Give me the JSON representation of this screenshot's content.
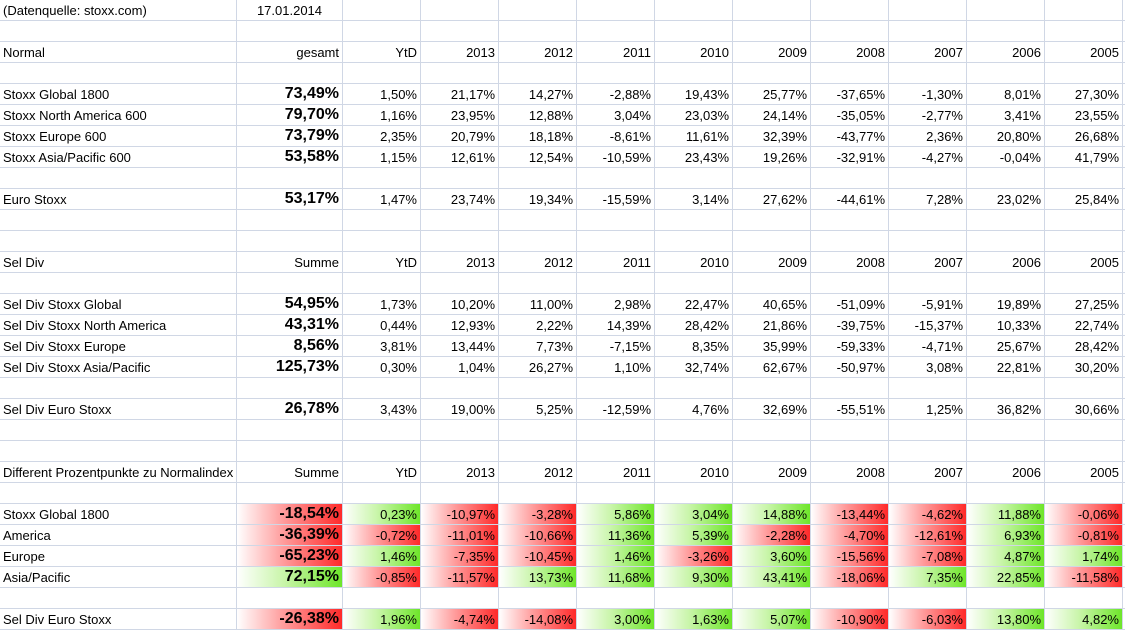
{
  "source_note": "(Datenquelle: stoxx.com)",
  "date": "17.01.2014",
  "years": [
    "2013",
    "2012",
    "2011",
    "2010",
    "2009",
    "2008",
    "2007",
    "2006",
    "2005"
  ],
  "sections": [
    {
      "header": {
        "label": "Normal",
        "total": "gesamt",
        "ytd": "YtD"
      },
      "groups": [
        [
          {
            "label": "Stoxx Global 1800",
            "total": "73,49%",
            "values": [
              "1,50%",
              "21,17%",
              "14,27%",
              "-2,88%",
              "19,43%",
              "25,77%",
              "-37,65%",
              "-1,30%",
              "8,01%",
              "27,30%"
            ]
          },
          {
            "label": "Stoxx North America 600",
            "total": "79,70%",
            "values": [
              "1,16%",
              "23,95%",
              "12,88%",
              "3,04%",
              "23,03%",
              "24,14%",
              "-35,05%",
              "-2,77%",
              "3,41%",
              "23,55%"
            ]
          },
          {
            "label": "Stoxx Europe 600",
            "total": "73,79%",
            "values": [
              "2,35%",
              "20,79%",
              "18,18%",
              "-8,61%",
              "11,61%",
              "32,39%",
              "-43,77%",
              "2,36%",
              "20,80%",
              "26,68%"
            ]
          },
          {
            "label": "Stoxx Asia/Pacific 600",
            "total": "53,58%",
            "values": [
              "1,15%",
              "12,61%",
              "12,54%",
              "-10,59%",
              "23,43%",
              "19,26%",
              "-32,91%",
              "-4,27%",
              "-0,04%",
              "41,79%"
            ]
          }
        ],
        [
          {
            "label": "Euro Stoxx",
            "total": "53,17%",
            "values": [
              "1,47%",
              "23,74%",
              "19,34%",
              "-15,59%",
              "3,14%",
              "27,62%",
              "-44,61%",
              "7,28%",
              "23,02%",
              "25,84%"
            ]
          }
        ]
      ]
    },
    {
      "header": {
        "label": "Sel Div",
        "total": "Summe",
        "ytd": "YtD"
      },
      "groups": [
        [
          {
            "label": "Sel Div Stoxx Global",
            "total": "54,95%",
            "values": [
              "1,73%",
              "10,20%",
              "11,00%",
              "2,98%",
              "22,47%",
              "40,65%",
              "-51,09%",
              "-5,91%",
              "19,89%",
              "27,25%"
            ]
          },
          {
            "label": "Sel Div Stoxx North America",
            "total": "43,31%",
            "values": [
              "0,44%",
              "12,93%",
              "2,22%",
              "14,39%",
              "28,42%",
              "21,86%",
              "-39,75%",
              "-15,37%",
              "10,33%",
              "22,74%"
            ]
          },
          {
            "label": "Sel Div Stoxx Europe",
            "total": "8,56%",
            "values": [
              "3,81%",
              "13,44%",
              "7,73%",
              "-7,15%",
              "8,35%",
              "35,99%",
              "-59,33%",
              "-4,71%",
              "25,67%",
              "28,42%"
            ]
          },
          {
            "label": "Sel Div Stoxx Asia/Pacific",
            "total": "125,73%",
            "values": [
              "0,30%",
              "1,04%",
              "26,27%",
              "1,10%",
              "32,74%",
              "62,67%",
              "-50,97%",
              "3,08%",
              "22,81%",
              "30,20%"
            ]
          }
        ],
        [
          {
            "label": "Sel Div Euro Stoxx",
            "total": "26,78%",
            "values": [
              "3,43%",
              "19,00%",
              "5,25%",
              "-12,59%",
              "4,76%",
              "32,69%",
              "-55,51%",
              "1,25%",
              "36,82%",
              "30,66%"
            ]
          }
        ]
      ]
    },
    {
      "header": {
        "label": "Different Prozentpunkte zu Normalindex",
        "total": "Summe",
        "ytd": "YtD"
      },
      "colored": true,
      "groups": [
        [
          {
            "label": "Stoxx Global 1800",
            "total": "-18,54%",
            "values": [
              "0,23%",
              "-10,97%",
              "-3,28%",
              "5,86%",
              "3,04%",
              "14,88%",
              "-13,44%",
              "-4,62%",
              "11,88%",
              "-0,06%"
            ]
          },
          {
            "label": "America",
            "total": "-36,39%",
            "values": [
              "-0,72%",
              "-11,01%",
              "-10,66%",
              "11,36%",
              "5,39%",
              "-2,28%",
              "-4,70%",
              "-12,61%",
              "6,93%",
              "-0,81%"
            ]
          },
          {
            "label": "Europe",
            "total": "-65,23%",
            "values": [
              "1,46%",
              "-7,35%",
              "-10,45%",
              "1,46%",
              "-3,26%",
              "3,60%",
              "-15,56%",
              "-7,08%",
              "4,87%",
              "1,74%"
            ]
          },
          {
            "label": "Asia/Pacific",
            "total": "72,15%",
            "values": [
              "-0,85%",
              "-11,57%",
              "13,73%",
              "11,68%",
              "9,30%",
              "43,41%",
              "-18,06%",
              "7,35%",
              "22,85%",
              "-11,58%"
            ]
          }
        ],
        [
          {
            "label": "Sel Div Euro Stoxx",
            "total": "-26,38%",
            "values": [
              "1,96%",
              "-4,74%",
              "-14,08%",
              "3,00%",
              "1,63%",
              "5,07%",
              "-10,90%",
              "-6,03%",
              "13,80%",
              "4,82%"
            ]
          }
        ]
      ]
    }
  ]
}
